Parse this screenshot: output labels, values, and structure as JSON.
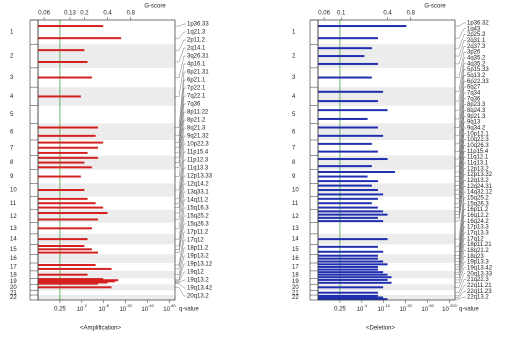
{
  "chart_data": [
    {
      "type": "bar",
      "orientation": "horizontal",
      "title": "G-score",
      "x_label": "q-value",
      "caption": "<Amplification>",
      "color": "#d42020",
      "log_scale": true,
      "xlim": [
        0.05,
        3
      ],
      "xticks": [
        0.06,
        0.13,
        0.2,
        0.4,
        0.8
      ],
      "q_ticks": [
        {
          "label": "0.25"
        },
        {
          "base": "10",
          "exponent": "-2"
        },
        {
          "base": "10",
          "exponent": "-8"
        },
        {
          "base": "10",
          "exponent": "-20"
        },
        {
          "base": "10",
          "exponent": "-40"
        },
        {
          "base": "10",
          "exponent": "-80"
        }
      ],
      "chromosomes": [
        "1",
        "2",
        "3",
        "4",
        "5",
        "6",
        "7",
        "8",
        "9",
        "10",
        "11",
        "12",
        "13",
        "14",
        "15",
        "16",
        "17",
        "18",
        "19",
        "20",
        "21",
        "22"
      ],
      "categories": [
        "1p36.33",
        "1q21.3",
        "2p11.2",
        "2q14.1",
        "3q26.31",
        "4p16.1",
        "6p21.31",
        "6p21.1",
        "7p22.1",
        "7q22.1",
        "7q36",
        "8p11.22",
        "8p21.2",
        "8q21.3",
        "9q21.32",
        "10p22.3",
        "11p15.4",
        "11p12.3",
        "11q13.3",
        "12p13.33",
        "12q14.2",
        "13q33.1",
        "14q11.2",
        "15q16.3",
        "15q25.2",
        "15q26.3",
        "17p11.2",
        "17q12",
        "18p11.2",
        "19p13.2",
        "19p13.12",
        "19q12",
        "19q13.2",
        "19q13.42",
        "20q13.2"
      ],
      "values": [
        0.35,
        0.6,
        0.2,
        0.22,
        0.25,
        0.18,
        0.3,
        0.28,
        0.35,
        0.3,
        0.22,
        0.3,
        0.2,
        0.25,
        0.18,
        0.2,
        0.22,
        0.28,
        0.35,
        0.4,
        0.3,
        0.25,
        0.22,
        0.2,
        0.25,
        0.3,
        0.28,
        0.45,
        0.22,
        0.35,
        0.55,
        0.5,
        0.4,
        0.3,
        0.45
      ]
    },
    {
      "type": "bar",
      "orientation": "horizontal",
      "title": "G-score",
      "x_label": "q-value",
      "caption": "<Deletion>",
      "color": "#1f2fb0",
      "log_scale": true,
      "xlim": [
        0.05,
        3
      ],
      "xticks": [
        0.06,
        0.1,
        0.4,
        0.8
      ],
      "q_ticks": [
        {
          "label": "0.25"
        },
        {
          "base": "10",
          "exponent": "-4"
        },
        {
          "base": "10",
          "exponent": "-10"
        },
        {
          "base": "10",
          "exponent": "-20"
        },
        {
          "base": "10",
          "exponent": "-50"
        },
        {
          "base": "10",
          "exponent": "-200"
        }
      ],
      "chromosomes": [
        "1",
        "2",
        "3",
        "4",
        "5",
        "6",
        "7",
        "8",
        "9",
        "10",
        "11",
        "12",
        "13",
        "14",
        "15",
        "16",
        "17",
        "18",
        "19",
        "20",
        "21",
        "22"
      ],
      "categories": [
        "1p36.32",
        "1q43",
        "2p25.3",
        "2q31.1",
        "2q37.3",
        "3p26",
        "4q35.2",
        "4q35.2",
        "5p15.33",
        "5q13.2",
        "6p22.33",
        "6q27",
        "7q34",
        "7q36",
        "8p23.3",
        "8q24.3",
        "9p21.3",
        "9q13",
        "9q34.2",
        "10p12.1",
        "10q22.3",
        "10q26.3",
        "11p15.4",
        "11q12.1",
        "11q13.1",
        "12p13.2",
        "12p13.32",
        "12q13.2",
        "12q24.31",
        "14q32.12",
        "15q25.2",
        "15q26.3",
        "16p11.2",
        "16q12.2",
        "16q24.2",
        "17p13.3",
        "17q13.3",
        "17q12",
        "18p11.21",
        "18q21.2",
        "18q23",
        "19p13.3",
        "19q13.42",
        "20q13.33",
        "21q22.3",
        "22q11.21",
        "22q11.23",
        "22q13.2"
      ],
      "values": [
        0.7,
        0.3,
        0.25,
        0.2,
        0.3,
        0.25,
        0.35,
        0.3,
        0.4,
        0.22,
        0.3,
        0.35,
        0.25,
        0.3,
        0.4,
        0.25,
        0.5,
        0.22,
        0.3,
        0.25,
        0.3,
        0.35,
        0.3,
        0.25,
        0.3,
        0.35,
        0.4,
        0.3,
        0.35,
        0.4,
        0.3,
        0.35,
        0.3,
        0.3,
        0.35,
        0.4,
        0.3,
        0.3,
        0.35,
        0.4,
        0.45,
        0.4,
        0.45,
        0.35,
        0.3,
        0.3,
        0.35,
        0.4
      ]
    }
  ]
}
